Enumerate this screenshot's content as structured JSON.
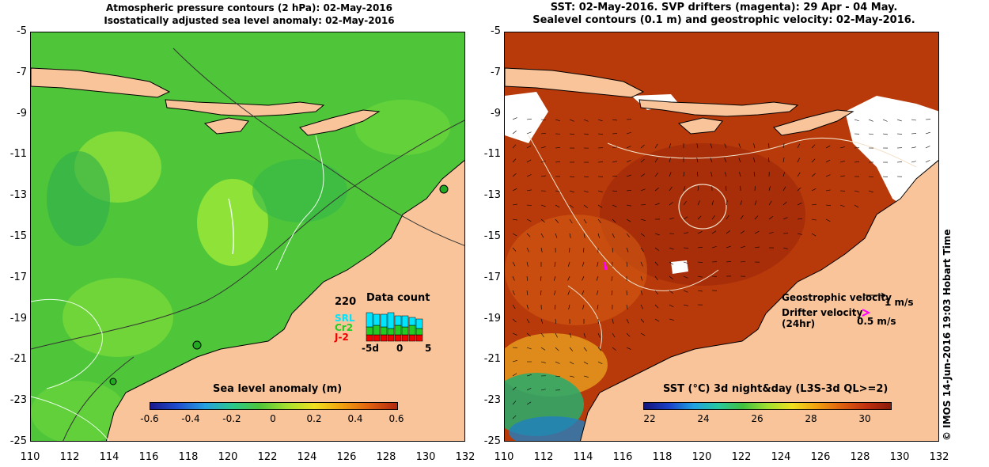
{
  "left_panel": {
    "title_line1": "Atmospheric pressure contours (2 hPa): 02-May-2016",
    "title_line2": "Isostatically adjusted sea level anomaly: 02-May-2016",
    "colorbar_title": "Sea level anomaly (m)",
    "colorbar_ticks": [
      "-0.6",
      "-0.4",
      "-0.2",
      "0",
      "0.2",
      "0.4",
      "0.6"
    ],
    "data_count": {
      "title": "Data count",
      "max_label": "220",
      "series_labels": [
        "SRL",
        "Cr2",
        "J-2"
      ],
      "x_ticks": [
        "-5d",
        "0",
        "5"
      ]
    }
  },
  "right_panel": {
    "title_line1": "SST: 02-May-2016. SVP drifters (magenta): 29 Apr - 04 May.",
    "title_line2": "Sealevel contours (0.1 m) and geostrophic velocity: 02-May-2016.",
    "colorbar_title": "SST (°C) 3d night&day (L3S-3d QL>=2)",
    "colorbar_ticks": [
      "22",
      "24",
      "26",
      "28",
      "30"
    ],
    "legend": {
      "geostrophic_label": "Geostrophic velocity",
      "geostrophic_scale": "1 m/s",
      "drifter_label": "Drifter velocity",
      "drifter_period": "(24hr)",
      "drifter_scale": "0.5 m/s"
    }
  },
  "axes": {
    "x_ticks": [
      "110",
      "112",
      "114",
      "116",
      "118",
      "120",
      "122",
      "124",
      "126",
      "128",
      "130",
      "132"
    ],
    "y_ticks": [
      "-5",
      "-7",
      "-9",
      "-11",
      "-13",
      "-15",
      "-17",
      "-19",
      "-21",
      "-23",
      "-25"
    ]
  },
  "colors": {
    "land": "#f9c49a",
    "sla_ocean": "#52c83c",
    "sst_ocean": "#b83a0a",
    "magenta": "#ff00ff",
    "count_srl": "#00e5ff",
    "count_cr2": "#22cc22",
    "count_j2": "#ee0000"
  },
  "timestamp": "© IMOS 14-Jun-2016 19:03 Hobart Time"
}
